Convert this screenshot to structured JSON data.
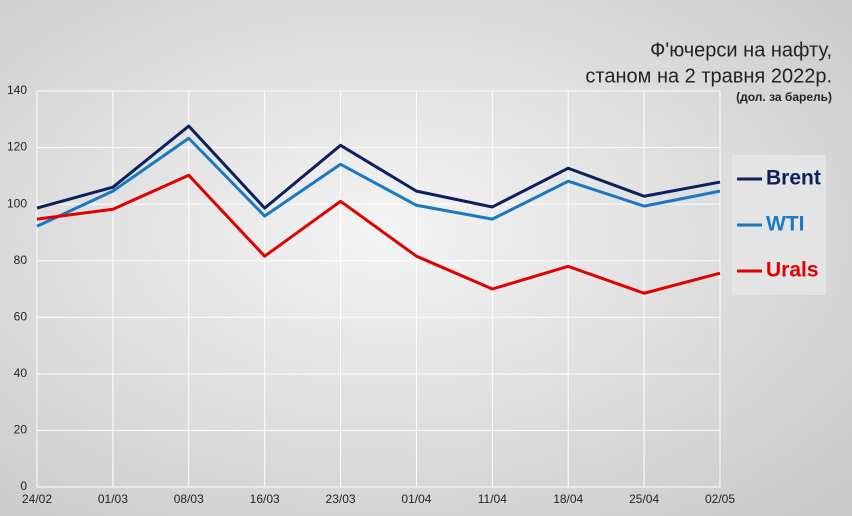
{
  "chart_data": {
    "type": "line",
    "title": [
      "Ф'ючерси на нафту,",
      "станом на 2 травня 2022р."
    ],
    "subtitle": "(дол. за барель)",
    "categories": [
      "24/02",
      "01/03",
      "08/03",
      "16/03",
      "23/03",
      "01/04",
      "11/04",
      "18/04",
      "25/04",
      "02/05"
    ],
    "series": [
      {
        "name": "Brent",
        "color": "#0d1f5c",
        "values": [
          98.6,
          106,
          127.6,
          98.6,
          120.8,
          104.6,
          99,
          112.7,
          102.8,
          107.8
        ]
      },
      {
        "name": "WTI",
        "color": "#1a78c2",
        "values": [
          92.2,
          104.6,
          123.3,
          95.8,
          114.1,
          99.6,
          94.7,
          108.1,
          99.3,
          104.6
        ]
      },
      {
        "name": "Urals",
        "color": "#e00000",
        "values": [
          94.7,
          98.2,
          110.2,
          81.6,
          101,
          81.6,
          70,
          78,
          68.5,
          75.6
        ]
      }
    ],
    "ylim": [
      0,
      140
    ],
    "yticks": [
      0,
      20,
      40,
      60,
      80,
      100,
      120,
      140
    ],
    "grid": true
  }
}
